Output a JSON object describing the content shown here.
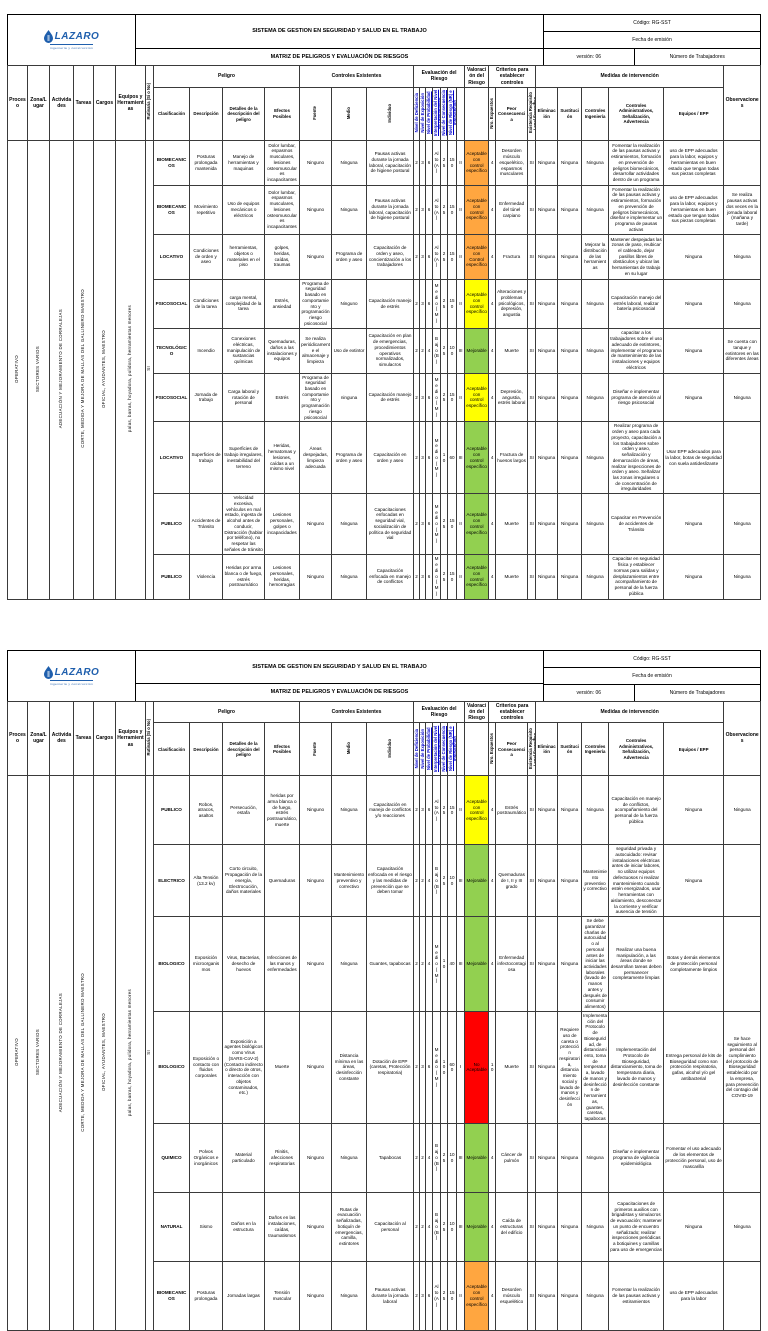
{
  "colors": {
    "orange": "#ffa640",
    "yellow": "#ffff00",
    "green": "#92d050",
    "red": "#ff0000",
    "link_blue": "#0000cc",
    "logo_blue": "#1f5fad"
  },
  "header": {
    "logo_text": "LAZARO",
    "logo_tagline": "ingeniería y construcción",
    "system_title": "SISTEMA DE GESTION EN SEGURIDAD Y SALUD EN EL TRABAJO",
    "matrix_title": "MATRIZ DE PELIGROS Y EVALUACIÓN DE RIESGOS",
    "code": "Código: RG-SST",
    "issue_date": "Fecha de emisión",
    "version": "versión: 06",
    "workers": "Número de Trabajadores"
  },
  "table": {
    "groups": {
      "peligro": "Peligro",
      "controles": "Controles Existentes",
      "evaluacion": "Evaluación del Riesgo",
      "valoracion": "Valoración del Riesgo",
      "criterios": "Criterios para establecer controles",
      "medidas": "Medidas de intervención"
    },
    "cols": {
      "proceso": "Proceso",
      "zona": "Zona/Lugar",
      "actividades": "Actividades",
      "tareas": "Tareas",
      "cargos": "Cargos",
      "equipos": "Equipos y Herramientas",
      "rutinaria": "Rutinaria (Sí o No)",
      "clasificacion": "Clasificación",
      "descripcion": "Descripción",
      "detalles": "Detalles de la descripción del peligro",
      "efectos": "Efectos Posibles",
      "fuente": "Fuente",
      "medio": "Medio",
      "individuo": "Individuo",
      "nd": "Nivel de Deficiencia",
      "ne": "Nivel de Exposición",
      "np": "Nivel de Probabilidad (ND x NE)",
      "inp": "Interpretación del Nivel de Probabilidad",
      "nc": "Nivel de Consecuencia",
      "nr": "Nivel de Riesgo (NR) e Intervención",
      "inr": "Interpretación del NR",
      "acc": "Aceptabilidad del Riesgo",
      "nro": "Nro. Expuestos",
      "peor": "Peor Consecuencia",
      "req": "Existencia Requisito Legal Específico Asociado (Sí o No)",
      "eli": "Eliminación",
      "sus": "Sustitución",
      "cin": "Controles Ingeniería",
      "adm": "Controles Administrativos, Señalización, Advertencia",
      "epp": "Equipos / EPP",
      "obs": "Observaciones"
    }
  },
  "left_meta": {
    "proceso": "OPERATIVO",
    "zona": "SECTORES VARIOS",
    "actividades": "ADECUACIÓN Y MEJORAMIENTO DE CORRALEJAS",
    "tareas": "CORTE, MEDIDA Y MEJORA DE MALLAS DEL GALLINERO MAESTRO",
    "cargos": "OFICIAL, AYUDANTES, MAESTRO",
    "equipos": "palas, barras, hoyadora, pulidora, herramientas menores",
    "rutinaria": "SI"
  },
  "pages": [
    {
      "rows": [
        {
          "cls": "BIOMECANICOS",
          "desc": "Posturas prolongada mantenida",
          "det": "Manejo de herramientas y maquinas",
          "efe": "Dolor lumbar, espasmos musculares, lesiones osteomusculares incapacitantes",
          "fue": "Ninguno",
          "med": "Ninguna",
          "ind": "Pausas activas durante la jornada laboral, capacitación de higiene postural",
          "nd": "2",
          "ne": "3",
          "np": "6",
          "inp": "Alto (A)",
          "nc": "25",
          "nr": "150",
          "inr": "II",
          "acc": "Aceptable con control específico",
          "color": "orange",
          "nro": "4",
          "peor": "Desorden músculo esquelético, espasmos musculares",
          "req": "SI",
          "eli": "Ninguna",
          "sus": "Ninguna",
          "cin": "Ninguna",
          "adm": "Fomentar la realización de las pausas activas y estiramientos, formación en prevención de peligros biomecánicos, desarrollar actividades dentro de un programa",
          "epp": "uso de EPP adecuados para la labor, equipos y herramientas en buen estado que tengan todas sus piezas completas",
          "obs": ""
        },
        {
          "cls": "BIOMECANICOS",
          "desc": "Movimiento repetitivo",
          "det": "Uso de equipos mecánicos o eléctricos",
          "efe": "Dolor lumbar, espasmos musculares, lesiones osteomusculares incapacitantes",
          "fue": "Ninguno",
          "med": "Ninguna",
          "ind": "Pausas activas durante la jornada laboral, capacitación de higiene postural",
          "nd": "2",
          "ne": "3",
          "np": "6",
          "inp": "Alto (A)",
          "nc": "25",
          "nr": "150",
          "inr": "II",
          "acc": "Aceptable con control específico",
          "color": "orange",
          "nro": "4",
          "peor": "Enfermedad del túnel carpiano",
          "req": "SI",
          "eli": "Ninguna",
          "sus": "Ninguna",
          "cin": "Ninguna",
          "adm": "Fomentar la realización de las pausas activas y estiramientos, formación en prevención de peligros biomecánicos, diseñar e implementar un programa de pausas activas",
          "epp": "uso de EPP adecuados para la labor, equipos y herramientas en buen estado que tengan todas sus piezas completas",
          "obs": "Se realiza pausas activas dos veces en la jornada laboral (mañana y tarde)"
        },
        {
          "cls": "LOCATIVO",
          "desc": "Condiciones de orden y aseo",
          "det": "herramientas, objetos o materiales en el piso",
          "efe": "golpes, heridas, caídas, traumas",
          "fue": "Ninguno",
          "med": "Programa de orden y aseo",
          "ind": "Capacitación de orden y aseo, concientización a los trabajadores",
          "nd": "2",
          "ne": "3",
          "np": "6",
          "inp": "Alto (A)",
          "nc": "25",
          "nr": "150",
          "inr": "II",
          "acc": "Aceptable con Control específico",
          "color": "orange",
          "nro": "4",
          "peor": "Fractura",
          "req": "SI",
          "eli": "Ninguna",
          "sus": "Ninguna",
          "cin": "Mejorar la distribución de las herramientas",
          "adm": "Mantener despejadas las zonas de paso, reubicar el cableado, dejar pasillos libres de obstáculos y ubicar las herramientas de trabajo en su lugar",
          "epp": "Ninguna",
          "obs": "Ninguna"
        },
        {
          "cls": "PSICOSOCIAL",
          "desc": "Condiciones de la tarea",
          "det": "carga mental, complejidad de la tarea",
          "efe": "Estrés, ansiedad",
          "fue": "Programa de seguridad basado en comportamiento y programación riesgo psicosocial",
          "med": "Ninguno",
          "ind": "Capacitación manejo de estrés",
          "nd": "2",
          "ne": "3",
          "np": "6",
          "inp": "Medio (M)",
          "nc": "25",
          "nr": "150",
          "inr": "II",
          "acc": "Aceptable con control específico",
          "color": "yellow",
          "nro": "4",
          "peor": "Alteraciones y problemas psicológicos, depresión, angustia",
          "req": "SI",
          "eli": "Ninguna",
          "sus": "Ninguna",
          "cin": "Ninguna",
          "adm": "Capacitación manejo del estrés laboral, realizar batería psicosocial",
          "epp": "Ninguna",
          "obs": "Ninguna"
        },
        {
          "cls": "TECNOLÓGICO",
          "desc": "Incendio",
          "det": "Conexiones eléctricas, manipulación de sustancias químicas",
          "efe": "Quemaduras, daños a las instalaciones y equipos",
          "fue": "Se realiza periódicamente el almacenaje y limpieza",
          "med": "Uso de extintor",
          "ind": "Capacitación en plan de emergencias, procedimientos operativos normalizados, simulacros",
          "nd": "2",
          "ne": "2",
          "np": "4",
          "inp": "Bajo (B)",
          "nc": "25",
          "nr": "100",
          "inr": "III",
          "acc": "Mejorable",
          "color": "green",
          "nro": "4",
          "peor": "Muerte",
          "req": "SI",
          "eli": "Ninguna",
          "sus": "Ninguna",
          "cin": "Ninguna",
          "adm": "capacitar a los trabajadores sobre el uso adecuado de extintores, implementar el programa de mantenimiento de las instalaciones y equipos eléctricos",
          "epp": "Ninguna",
          "obs": "Se cuenta con tanque y extintores en las diferentes áreas"
        },
        {
          "cls": "PSICOSOCIAL",
          "desc": "Jornada de trabajo",
          "det": "Carga laboral y rotación de personal",
          "efe": "Estrés",
          "fue": "Programa de seguridad basado en comportamiento y programación riesgo psicosocial",
          "med": "ninguna",
          "ind": "Capacitación manejo de estrés",
          "nd": "2",
          "ne": "3",
          "np": "6",
          "inp": "Medio (M)",
          "nc": "25",
          "nr": "150",
          "inr": "II",
          "acc": "Aceptable con control específico",
          "color": "yellow",
          "nro": "4",
          "peor": "Depresión, angustia, estrés laboral",
          "req": "SI",
          "eli": "Ninguna",
          "sus": "Ninguna",
          "cin": "Ninguna",
          "adm": "Diseñar e implementar programa de atención al riesgo psicosocial",
          "epp": "Ninguna",
          "obs": "Ninguna"
        },
        {
          "cls": "LOCATIVO",
          "desc": "Superficies de trabajo",
          "det": "Superficies de trabajo irregulares, inestabilidad del terreno",
          "efe": "Heridas, hematomas y lesiones, caídas a un mismo nivel",
          "fue": "Áreas despejadas, limpieza adecuada",
          "med": "Programa de orden y aseo",
          "ind": "Capacitación en orden y aseo",
          "nd": "2",
          "ne": "3",
          "np": "6",
          "inp": "Medio (M)",
          "nc": "10",
          "nr": "60",
          "inr": "III",
          "acc": "Aceptable con control específico",
          "color": "green",
          "nro": "4",
          "peor": "Fractura de huesos largos",
          "req": "SI",
          "eli": "Ninguna",
          "sus": "Ninguna",
          "cin": "Ninguna",
          "adm": "Realizar programa de orden y aseo para cada proyecto, capacitación a los trabajadores sobre orden y aseo, señalización y demarcación de áreas, realizar inspecciones de orden y aseo. Señalizar las zonas irregulares o de concentración de irregularidades",
          "epp": "Usar EPP adecuados para la labor, botas de seguridad con suela antideslizante",
          "obs": ""
        },
        {
          "cls": "PUBLICO",
          "desc": "Accidentes de Tránsito",
          "det": "Velocidad excesiva, vehículos en mal estado, ingesta de alcohol antes de conducir, Distracción (hablar por teléfono), no respetar las señales de tránsito",
          "efe": "Lesiones personales, golpes o incapacidades",
          "fue": "Ninguno",
          "med": "Ninguna",
          "ind": "Capacitaciones enfocadas en seguridad vial, socialización de política de seguridad vial",
          "nd": "2",
          "ne": "3",
          "np": "6",
          "inp": "Medio (M)",
          "nc": "25",
          "nr": "150",
          "inr": "II",
          "acc": "Aceptable con control específico",
          "color": "green",
          "nro": "4",
          "peor": "Muerte",
          "req": "SI",
          "eli": "Ninguna",
          "sus": "Ninguna",
          "cin": "Ninguna",
          "adm": "Capacitar en Prevención de accidentes de Tránsito",
          "epp": "Ninguna",
          "obs": "Ninguna"
        },
        {
          "cls": "PUBLICO",
          "desc": "Violencia",
          "det": "Heridas por arma blanca o de fuego, estrés postraumático",
          "efe": "Lesiones personales, heridas, hemorragias",
          "fue": "Ninguno",
          "med": "Ninguna",
          "ind": "Capacitación enfocada en manejo de conflictos",
          "nd": "2",
          "ne": "3",
          "np": "6",
          "inp": "Medio (M)",
          "nc": "25",
          "nr": "150",
          "inr": "II",
          "acc": "Aceptable con control específico",
          "color": "green",
          "nro": "4",
          "peor": "Muerte",
          "req": "SI",
          "eli": "Ninguna",
          "sus": "Ninguna",
          "cin": "Ninguna",
          "adm": "Capacitar en seguridad física y establecer normas para salidas y desplazamientos entre acompañamiento de personal de la fuerza pública",
          "epp": "Ninguna",
          "obs": "Ninguna"
        }
      ]
    },
    {
      "rows": [
        {
          "cls": "PUBLICO",
          "desc": "Robos, atracos, asaltos",
          "det": "Persecución, estafa",
          "efe": "heridas por arma blanca o de fuego, estrés postraumático, muerte",
          "fue": "Ninguno",
          "med": "Ninguna",
          "ind": "Capacitación en manejo de conflictos y/o reacciones",
          "nd": "2",
          "ne": "3",
          "np": "6",
          "inp": "Alto (A)",
          "nc": "25",
          "nr": "150",
          "inr": "II",
          "acc": "Aceptable con control específico",
          "color": "yellow",
          "nro": "4",
          "peor": "Estrés postraumático",
          "req": "SI",
          "eli": "Ninguna",
          "sus": "Ninguna",
          "cin": "Ninguna",
          "adm": "Capacitación en manejo de conflictos, acompañamiento del personal de la fuerza pública",
          "epp": "Ninguna",
          "obs": "Ninguna"
        },
        {
          "cls": "ELECTRICO",
          "desc": "Alta Tensión (13.2 kv)",
          "det": "Corto circuito, Propagación de la energía, Electrocución, daños materiales",
          "efe": "Quemaduras",
          "fue": "Ninguno",
          "med": "Mantenimiento preventivo y correctivo",
          "ind": "Capacitación enfocada en el riesgo y las medidas de prevención que se deben tomar",
          "nd": "2",
          "ne": "2",
          "np": "4",
          "inp": "Bajo (B)",
          "nc": "25",
          "nr": "100",
          "inr": "III",
          "acc": "Mejorable",
          "color": "green",
          "nro": "4",
          "peor": "Quemaduras de I, II y III grado",
          "req": "SI",
          "eli": "Ninguna",
          "sus": "Ninguna",
          "cin": "Mantenimiento preventivo y correctivo",
          "adm": "seguridad privada y autocuidado: revisar instalaciones eléctricas antes de iniciar labores, no utilizar equipos defectuosos ni realizar mantenimiento cuando estén energizados, usar herramientas con aislamiento, desconectar la corriente y verificar ausencia de tensión",
          "epp": "Ninguna",
          "obs": ""
        },
        {
          "cls": "BIOLOGICO",
          "desc": "Exposición microorganismos",
          "det": "Virus, Bacterias, desecho de huevos",
          "efe": "Infecciones de las manos y enfermedades",
          "fue": "Ninguno",
          "med": "Ninguna",
          "ind": "Guantes, tapabocas",
          "nd": "2",
          "ne": "2",
          "np": "4",
          "inp": "Medio (M)",
          "nc": "10",
          "nr": "40",
          "inr": "III",
          "acc": "Mejorable",
          "color": "green",
          "nro": "4",
          "peor": "Enfermedad infectocontagiosa",
          "req": "SI",
          "eli": "Ninguna",
          "sus": "Ninguna",
          "cin": "Se debe garantizar charlas de autocuidado al personal antes de iniciar las actividades laborales (lavado de manos antes y después de consumir alimentos)",
          "adm": "Realizar una buena manipulación, a las áreas donde se desarrollan tareas deben permanecer completamente limpias",
          "epp": "Botas y demás elementos de protección personal completamente limpios",
          "obs": ""
        },
        {
          "cls": "BIOLOGICO",
          "desc": "Exposición o contacto con fluidos corporales",
          "det": "Exposición a agentes biológicos como Virus (SARS-CoV-2) (Contacto indirecto o directo de otros, interacción con objetos contaminados, etc.)",
          "efe": "Muerte",
          "fue": "Ninguno",
          "med": "Distancia mínima en las áreas, desinfección constante",
          "ind": "Dotación de EPP (caretas, Protección respiratoria)",
          "nd": "2",
          "ne": "3",
          "np": "6",
          "inp": "Medio (M)",
          "nc": "100",
          "nr": "600",
          "inr": "I",
          "acc": "No Aceptable",
          "color": "red",
          "nro": "10",
          "peor": "Muerte",
          "req": "SI",
          "eli": "Ninguna",
          "sus": "Requiere uso de careta o protección respiratoria, distanciamiento social y lavado de manos y desinfección",
          "cin": "Implementación del Protocolo de Bioseguridad, de distanciamiento, toma de temperatura, lavado de manos y desinfección de herramientas, guantes, caretas, tapabocas",
          "adm": "Implementación del Protocolo de Bioseguridad, distanciamiento, toma de temperatura diaria, lavado de manos y desinfección constante",
          "epp": "Entrega personal de kits de Bioseguridad como son protección respiratoria, gafas, alcohol y/o gel antibacterial",
          "obs": "Se hace seguimiento al personal del cumplimiento del protocolo de Bioseguridad establecido por la empresa, para prevención del contagio del COVID-19"
        },
        {
          "cls": "QUIMICO",
          "desc": "Polvos Orgánicos e inorgánicos",
          "det": "Material particulado",
          "efe": "Rinitis, afecciones respiratorias",
          "fue": "Ninguno",
          "med": "Ninguna",
          "ind": "Tapabocas",
          "nd": "2",
          "ne": "2",
          "np": "4",
          "inp": "Bajo (B)",
          "nc": "25",
          "nr": "100",
          "inr": "III",
          "acc": "Mejorable",
          "color": "green",
          "nro": "4",
          "peor": "Cáncer de pulmón",
          "req": "SI",
          "eli": "Ninguna",
          "sus": "Ninguna",
          "cin": "Ninguna",
          "adm": "Diseñar e implementar programa de vigilancia epidemiológica",
          "epp": "Fomentar el uso adecuado de los elementos de protección personal, uso de mascarilla",
          "obs": ""
        },
        {
          "cls": "NATURAL",
          "desc": "Sismo",
          "det": "Daños en la estructura",
          "efe": "Daños en las instalaciones, caídas, traumatismos",
          "fue": "Ninguno",
          "med": "Rutas de evacuación señalizadas, botiquín de emergencias, camilla, extintores",
          "ind": "Capacitación al personal",
          "nd": "2",
          "ne": "2",
          "np": "4",
          "inp": "Bajo (B)",
          "nc": "25",
          "nr": "100",
          "inr": "III",
          "acc": "Mejorable",
          "color": "green",
          "nro": "4",
          "peor": "Caída de estructuras del edificio",
          "req": "SI",
          "eli": "Ninguna",
          "sus": "Ninguna",
          "cin": "Ninguna",
          "adm": "Capacitaciones de primeros auxilios con brigadistas y simulacros de evacuación; mantener un punto de encuentro señalizado; realizar inspecciones periódicas a botiquines y camillas para uso de emergencias",
          "epp": "Ninguna",
          "obs": "Ninguna"
        },
        {
          "cls": "BIOMECANICOS",
          "desc": "Posturas prolongada",
          "det": "Jornadas largas",
          "efe": "Tensión muscular",
          "fue": "Ninguno",
          "med": "Ninguna",
          "ind": "Pausas activas durante la jornada laboral",
          "nd": "2",
          "ne": "3",
          "np": "6",
          "inp": "Alto (A)",
          "nc": "25",
          "nr": "150",
          "inr": "II",
          "acc": "Aceptable con control específico",
          "color": "orange",
          "nro": "4",
          "peor": "Desorden músculo esquelético",
          "req": "SI",
          "eli": "Ninguna",
          "sus": "Ninguna",
          "cin": "Ninguna",
          "adm": "Fomentar la realización de las pausas activas y estiramientos",
          "epp": "uso de EPP adecuados para la labor",
          "obs": ""
        }
      ]
    }
  ]
}
